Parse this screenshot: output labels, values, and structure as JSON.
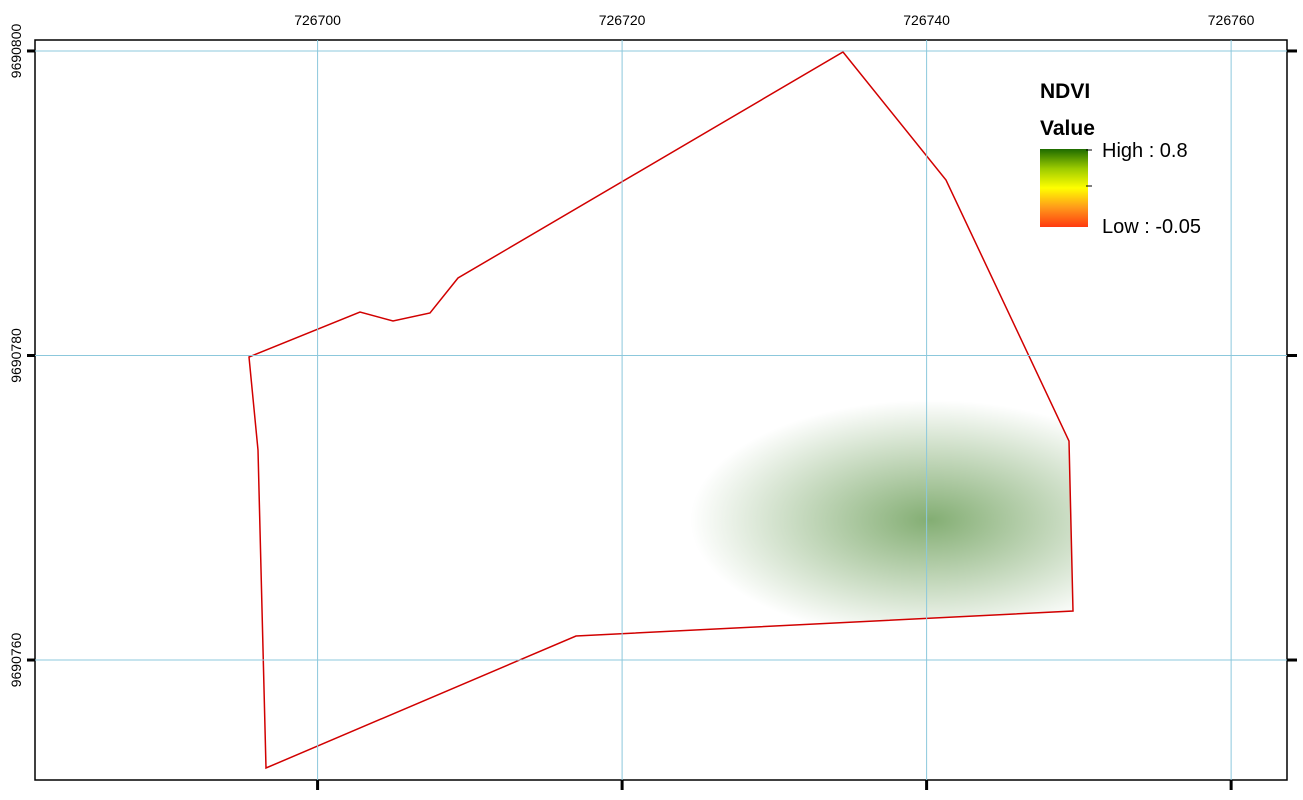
{
  "map_data": {
    "xlim": [
      726681.44,
      726763.67
    ],
    "ylim": [
      9690752.12,
      9690800.72
    ],
    "xticks": [
      726700,
      726720,
      726740,
      726760
    ],
    "yticks": [
      9690800,
      9690780,
      9690760
    ],
    "grid": true,
    "grid_color": "#8cc8dc"
  },
  "legend": {
    "title": "NDVI",
    "subtitle": "Value",
    "high": "High : 0.8",
    "low": "Low : -0.05",
    "colors": [
      "#1e6b00",
      "#9ccb00",
      "#ffff00",
      "#ff9a1a",
      "#ff3a10"
    ]
  }
}
